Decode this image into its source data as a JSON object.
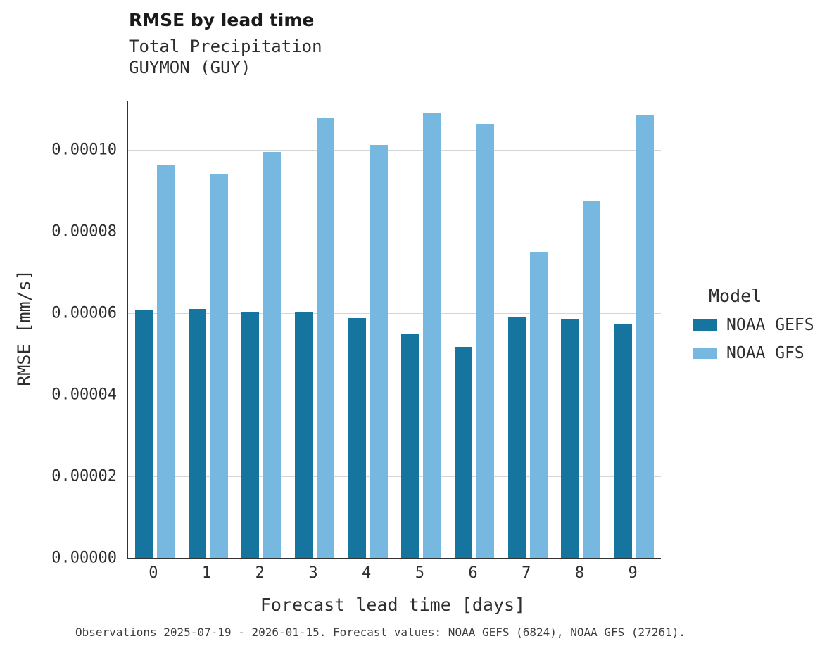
{
  "header": {
    "title": "RMSE by lead time",
    "subtitle1": "Total Precipitation",
    "subtitle2": "GUYMON (GUY)"
  },
  "legend": {
    "title": "Model"
  },
  "caption": "Observations 2025-07-19 - 2026-01-15. Forecast values: NOAA GEFS (6824), NOAA GFS (27261).",
  "chart_data": {
    "type": "bar",
    "title": "RMSE by lead time",
    "subtitle": "Total Precipitation, GUYMON (GUY)",
    "xlabel": "Forecast lead time [days]",
    "ylabel": "RMSE [mm/s]",
    "categories": [
      "0",
      "1",
      "2",
      "3",
      "4",
      "5",
      "6",
      "7",
      "8",
      "9"
    ],
    "series": [
      {
        "name": "NOAA GEFS",
        "color": "#15759e",
        "values": [
          6.07e-05,
          6.1e-05,
          6.03e-05,
          6.03e-05,
          5.88e-05,
          5.48e-05,
          5.17e-05,
          5.91e-05,
          5.86e-05,
          5.72e-05
        ]
      },
      {
        "name": "NOAA GFS",
        "color": "#76b8df",
        "values": [
          9.63e-05,
          9.4e-05,
          9.94e-05,
          0.0001078,
          0.0001011,
          0.0001089,
          0.0001064,
          7.5e-05,
          8.74e-05,
          0.0001085
        ]
      }
    ],
    "ylim": [
      0,
      0.000112
    ],
    "yticks": [
      0.0,
      2e-05,
      4e-05,
      6e-05,
      8e-05,
      0.0001
    ],
    "ytick_labels": [
      "0.00000",
      "0.00002",
      "0.00004",
      "0.00006",
      "0.00008",
      "0.00010"
    ],
    "grid": true,
    "legend_position": "right",
    "legend_title": "Model"
  }
}
